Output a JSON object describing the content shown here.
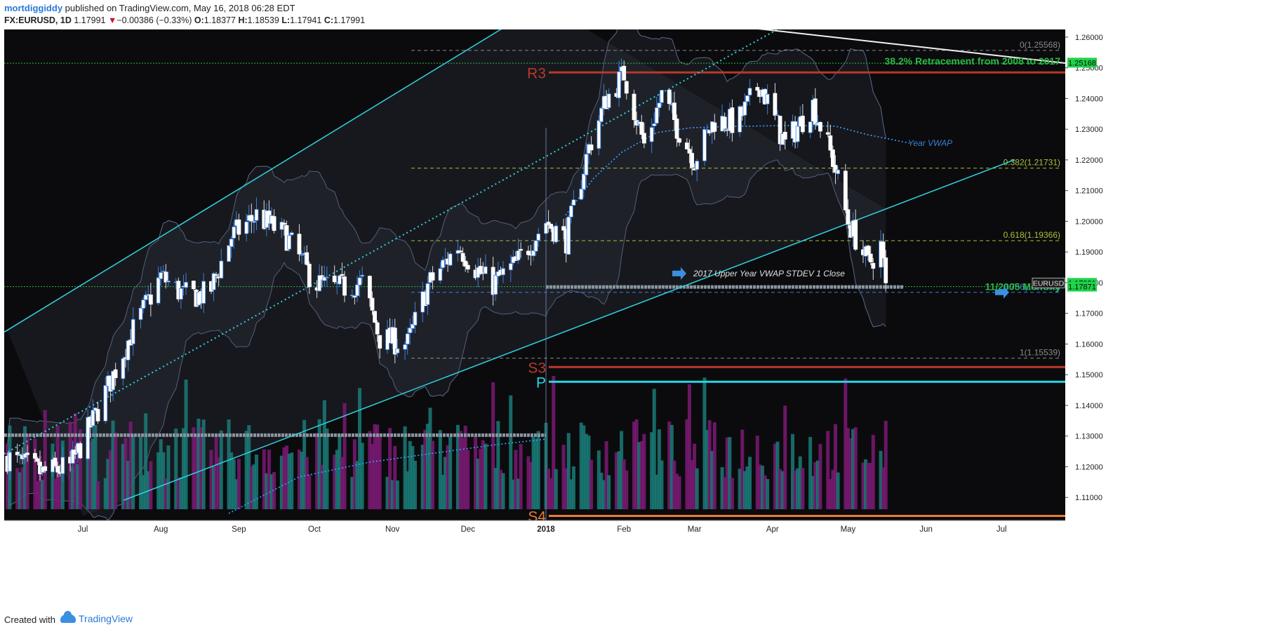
{
  "header": {
    "author": "mortdiggiddy",
    "published_text": "published on TradingView.com, May 16, 2018 06:28 EDT",
    "symbol": "FX:EURUSD, 1D",
    "last": "1.17991",
    "change_arrow": "▼",
    "change": "−0.00386 (−0.33%)",
    "o_label": "O:",
    "o": "1.18377",
    "h_label": "H:",
    "h": "1.18539",
    "l_label": "L:",
    "l": "1.17941",
    "c_label": "C:",
    "c": "1.17991"
  },
  "footer": {
    "created_with": "Created with",
    "brand": "TradingView",
    "brand_icon": "tradingview-cloud-icon"
  },
  "colors": {
    "background": "#0b0b0d",
    "bull": "#ffffff",
    "bear": "#ffffff",
    "wick_bull": "#3b7fd8",
    "channel": "#2fd3e0",
    "vwap": "#3ba0ff",
    "fib": "#a7c23c",
    "pivot_r3": "#b8392a",
    "pivot_s3": "#b8392a",
    "pivot_p": "#28d4e6",
    "pivot_s4": "#e57d32",
    "vol_up": "#1a7b78",
    "vol_down": "#7b1a74",
    "support": "#29b944",
    "price_tag": "#1fd34a"
  },
  "chart_data": {
    "type": "candlestick",
    "symbol": "EURUSD",
    "timeframe": "1D",
    "ylim": [
      1.1025,
      1.2625
    ],
    "y_ticks": [
      "1.26000",
      "1.25000",
      "1.24000",
      "1.23000",
      "1.22000",
      "1.21000",
      "1.20000",
      "1.19000",
      "1.18000",
      "1.17000",
      "1.16000",
      "1.15000",
      "1.14000",
      "1.13000",
      "1.12000",
      "1.11000"
    ],
    "x_ticks": [
      {
        "label": "Jul",
        "date": "2017-07-01"
      },
      {
        "label": "Aug",
        "date": "2017-08-01"
      },
      {
        "label": "Sep",
        "date": "2017-09-01"
      },
      {
        "label": "Oct",
        "date": "2017-10-01"
      },
      {
        "label": "Nov",
        "date": "2017-11-01"
      },
      {
        "label": "Dec",
        "date": "2017-12-01"
      },
      {
        "label": "2018",
        "date": "2018-01-01"
      },
      {
        "label": "Feb",
        "date": "2018-02-01"
      },
      {
        "label": "Mar",
        "date": "2018-03-01"
      },
      {
        "label": "Apr",
        "date": "2018-04-01"
      },
      {
        "label": "May",
        "date": "2018-05-01"
      },
      {
        "label": "Jun",
        "date": "2018-06-01"
      },
      {
        "label": "Jul",
        "date": "2018-07-01"
      }
    ],
    "price_path": [
      [
        "2017-06-01",
        1.123
      ],
      [
        "2017-06-15",
        1.118
      ],
      [
        "2017-06-26",
        1.12
      ],
      [
        "2017-07-05",
        1.135
      ],
      [
        "2017-07-20",
        1.163
      ],
      [
        "2017-08-01",
        1.182
      ],
      [
        "2017-08-10",
        1.176
      ],
      [
        "2017-08-20",
        1.176
      ],
      [
        "2017-08-29",
        1.195
      ],
      [
        "2017-09-08",
        1.202
      ],
      [
        "2017-09-20",
        1.195
      ],
      [
        "2017-10-01",
        1.18
      ],
      [
        "2017-10-10",
        1.178
      ],
      [
        "2017-10-20",
        1.18
      ],
      [
        "2017-10-27",
        1.162
      ],
      [
        "2017-11-07",
        1.16
      ],
      [
        "2017-11-15",
        1.179
      ],
      [
        "2017-11-27",
        1.192
      ],
      [
        "2017-12-10",
        1.179
      ],
      [
        "2017-12-20",
        1.186
      ],
      [
        "2018-01-01",
        1.2
      ],
      [
        "2018-01-09",
        1.194
      ],
      [
        "2018-01-18",
        1.224
      ],
      [
        "2018-01-25",
        1.24
      ],
      [
        "2018-02-01",
        1.248
      ],
      [
        "2018-02-09",
        1.225
      ],
      [
        "2018-02-16",
        1.241
      ],
      [
        "2018-02-22",
        1.231
      ],
      [
        "2018-03-01",
        1.22
      ],
      [
        "2018-03-09",
        1.233
      ],
      [
        "2018-03-18",
        1.232
      ],
      [
        "2018-03-27",
        1.245
      ],
      [
        "2018-04-06",
        1.225
      ],
      [
        "2018-04-17",
        1.238
      ],
      [
        "2018-04-25",
        1.22
      ],
      [
        "2018-05-01",
        1.2
      ],
      [
        "2018-05-09",
        1.186
      ],
      [
        "2018-05-14",
        1.192
      ],
      [
        "2018-05-16",
        1.1799
      ]
    ],
    "last_price": 1.17991,
    "price_tags": [
      {
        "value": 1.25168,
        "label": "1.25168"
      },
      {
        "value": 1.17991,
        "label": "1.17991"
      },
      {
        "value": 1.17871,
        "label": "1.17871"
      }
    ],
    "series_badge": "EURUSD",
    "fib_levels": [
      {
        "label": "0.382(1.21731)",
        "value": 1.21731
      },
      {
        "label": "0.618(1.19366)",
        "value": 1.19366
      },
      {
        "label": "0.786(1.17683)",
        "value": 1.17683
      },
      {
        "label": "1(1.15539)",
        "value": 1.15539
      },
      {
        "label": "0(1.25568)",
        "value": 1.25568
      }
    ],
    "pivots": [
      {
        "label": "R3",
        "value": 1.2485
      },
      {
        "label": "S3",
        "value": 1.1525
      },
      {
        "label": "P",
        "value": 1.1477
      },
      {
        "label": "S4",
        "value": 1.104
      }
    ],
    "horizontal_levels": [
      {
        "value": 1.2515,
        "style": "dotted",
        "color": "#29b944"
      },
      {
        "value": 1.17871,
        "style": "dotted",
        "color": "#29b944"
      }
    ],
    "annotations": [
      {
        "text": "38.2% Retracement from 2008 to 2017",
        "value": 1.2522
      },
      {
        "text": "11/2005 Monthly",
        "value": 1.179
      },
      {
        "text": "Year VWAP",
        "value": 1.2255
      },
      {
        "text": "2017 Upper Year VWAP STDEV 1 Close",
        "value": 1.183
      }
    ],
    "channel": {
      "upper": [
        [
          "2017-06-01",
          1.1645
        ],
        [
          "2017-12-31",
          1.271
        ]
      ],
      "lower": [
        [
          "2017-07-01",
          1.104
        ],
        [
          "2018-05-16",
          1.204
        ]
      ]
    },
    "volume": {
      "visible": true,
      "description_colors": [
        "up",
        "down"
      ]
    }
  }
}
